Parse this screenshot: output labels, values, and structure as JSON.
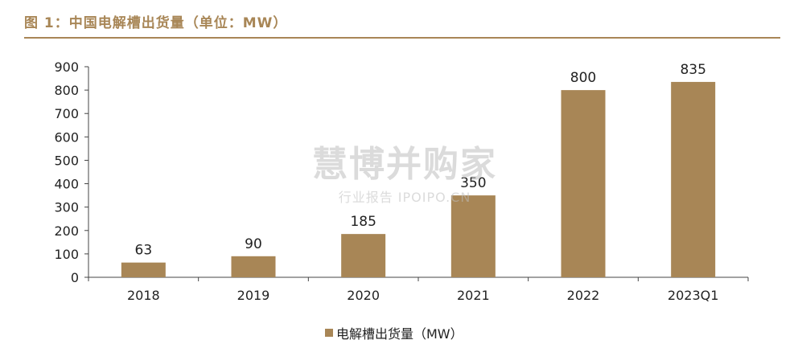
{
  "figure_title": "图 1：中国电解槽出货量（单位：MW）",
  "watermark": {
    "main": "慧博并购家",
    "sub": "行业报告 IPOIPO.CN"
  },
  "colors": {
    "accent": "#a88656",
    "bar": "#a88656"
  },
  "chart_data": {
    "type": "bar",
    "categories": [
      "2018",
      "2019",
      "2020",
      "2021",
      "2022",
      "2023Q1"
    ],
    "series": [
      {
        "name": "电解槽出货量（MW）",
        "values": [
          63,
          90,
          185,
          350,
          800,
          835
        ]
      }
    ],
    "ylim": [
      0,
      900
    ],
    "yticks": [
      0,
      100,
      200,
      300,
      400,
      500,
      600,
      700,
      800,
      900
    ],
    "legend_position": "bottom",
    "grid": false
  }
}
